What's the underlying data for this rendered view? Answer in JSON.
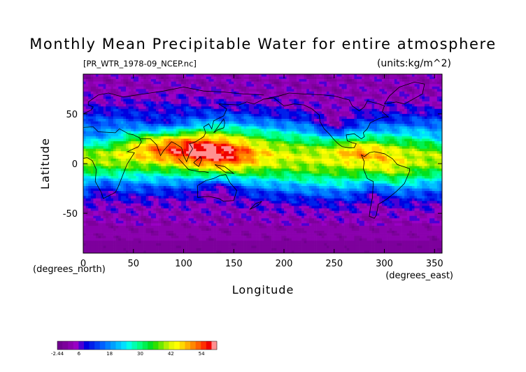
{
  "chart_data": {
    "type": "heatmap",
    "title": "Monthly Mean Precipitable Water for entire atmosphere",
    "source_file": "[PR_WTR_1978-09_NCEP.nc]",
    "units": "(units:kg/m^2)",
    "xlabel": "Longitude",
    "ylabel": "Latitude",
    "x_unit_label": "(degrees_east)",
    "y_unit_label": "(degrees_north)",
    "xlim": [
      0,
      357.5
    ],
    "ylim": [
      -90,
      90
    ],
    "x_ticks": [
      0,
      50,
      100,
      150,
      200,
      250,
      300,
      350
    ],
    "y_ticks": [
      -50,
      0,
      50
    ],
    "grid": false,
    "colorbar": {
      "min": -2.44,
      "max": 60,
      "tick_values": [
        -2.44,
        6,
        18,
        30,
        42,
        54
      ],
      "tick_labels": [
        "-2.44",
        "6",
        "18",
        "30",
        "42",
        "54"
      ],
      "colors": [
        "#70008f",
        "#7d009c",
        "#8a00ae",
        "#9900c4",
        "#4a00d4",
        "#0000e0",
        "#0020ea",
        "#0040f4",
        "#0060ff",
        "#0080ff",
        "#00a0ff",
        "#00c0ff",
        "#00e0ff",
        "#00ffe8",
        "#00ffb0",
        "#00ff80",
        "#00f050",
        "#00e020",
        "#30e000",
        "#70e800",
        "#b0f000",
        "#e8f800",
        "#ffff00",
        "#ffd800",
        "#ffb000",
        "#ff8800",
        "#ff6000",
        "#ff3000",
        "#f00000",
        "#ff9090"
      ]
    }
  }
}
